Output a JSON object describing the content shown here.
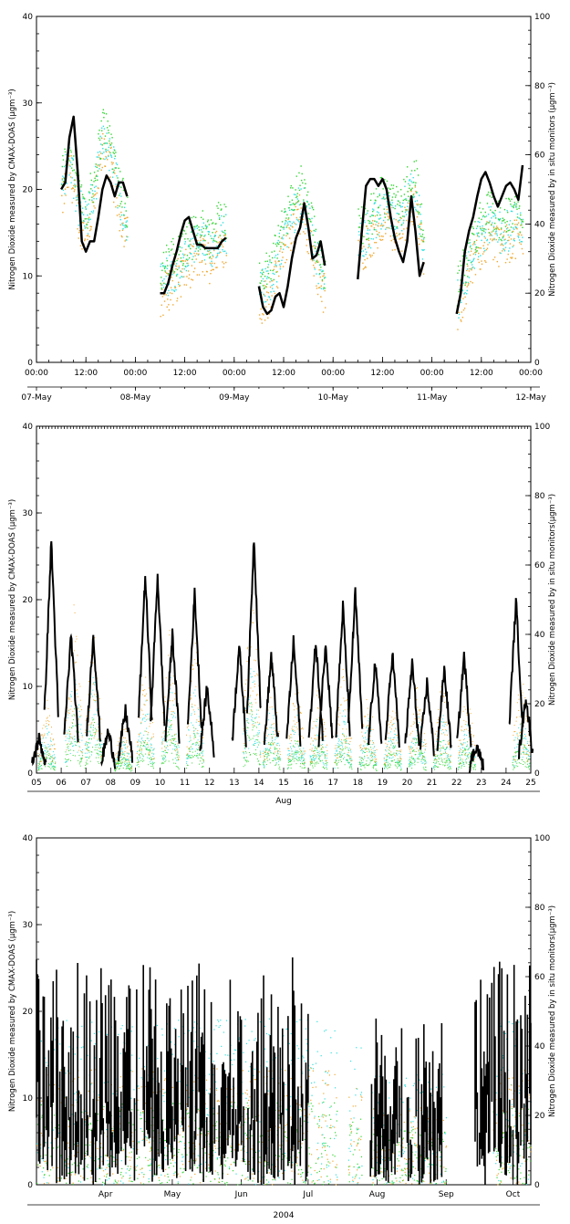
{
  "colors": {
    "in_situ": "#000000",
    "maxdoas_orange": "#f0a830",
    "maxdoas_green": "#33d633",
    "maxdoas_cyan": "#33e0e0"
  },
  "chart_data": [
    {
      "type": "scatter",
      "left_ylabel": "Nitrogen Dioxide measured by CMAX-DOAS (μgm⁻³)",
      "right_ylabel": "Nitrogen Dioxide measured by in situ monitors (μgm⁻³)",
      "left_ylim": [
        0,
        40
      ],
      "right_ylim": [
        0,
        100
      ],
      "left_yticks": [
        "0",
        "10",
        "20",
        "30",
        "40"
      ],
      "right_yticks": [
        "0",
        "20",
        "40",
        "60",
        "80",
        "100"
      ],
      "xlim": [
        0,
        120
      ],
      "x_ticks_top": [
        {
          "x": 0,
          "label": "00:00"
        },
        {
          "x": 12,
          "label": "12:00"
        },
        {
          "x": 24,
          "label": "00:00"
        },
        {
          "x": 36,
          "label": "12:00"
        },
        {
          "x": 48,
          "label": "00:00"
        },
        {
          "x": 60,
          "label": "12:00"
        },
        {
          "x": 72,
          "label": "00:00"
        },
        {
          "x": 84,
          "label": "12:00"
        },
        {
          "x": 96,
          "label": "00:00"
        },
        {
          "x": 108,
          "label": "12:00"
        },
        {
          "x": 120,
          "label": "00:00"
        }
      ],
      "x_ticks_bottom": [
        {
          "x": 0,
          "label": "07-May"
        },
        {
          "x": 24,
          "label": "08-May"
        },
        {
          "x": 48,
          "label": "09-May"
        },
        {
          "x": 72,
          "label": "10-May"
        },
        {
          "x": 96,
          "label": "11-May"
        },
        {
          "x": 120,
          "label": "12-May"
        }
      ],
      "xlabel": "",
      "segments": [
        {
          "start": 6,
          "end": 22,
          "insitu": [
            [
              6,
              50
            ],
            [
              7,
              52
            ],
            [
              8,
              65
            ],
            [
              9,
              71
            ],
            [
              10,
              55
            ],
            [
              11,
              35
            ],
            [
              12,
              32
            ],
            [
              13,
              35
            ],
            [
              14,
              35
            ],
            [
              15,
              42
            ],
            [
              16,
              50
            ],
            [
              17,
              54
            ],
            [
              18,
              52
            ],
            [
              19,
              48
            ],
            [
              20,
              52
            ],
            [
              21,
              52
            ],
            [
              22,
              48
            ]
          ],
          "doas": [
            [
              6,
              20
            ],
            [
              8,
              24
            ],
            [
              10,
              18
            ],
            [
              12,
              16
            ],
            [
              14,
              20
            ],
            [
              16,
              26
            ],
            [
              18,
              24
            ],
            [
              20,
              19
            ],
            [
              22,
              16
            ]
          ]
        },
        {
          "start": 30,
          "end": 46,
          "insitu": [
            [
              30,
              20
            ],
            [
              31,
              20
            ],
            [
              32,
              23
            ],
            [
              33,
              28
            ],
            [
              34,
              32
            ],
            [
              35,
              37
            ],
            [
              36,
              41
            ],
            [
              37,
              42
            ],
            [
              38,
              38
            ],
            [
              39,
              34
            ],
            [
              40,
              34
            ],
            [
              41,
              33
            ],
            [
              42,
              33
            ],
            [
              43,
              33
            ],
            [
              44,
              33
            ],
            [
              45,
              35
            ],
            [
              46,
              36
            ]
          ],
          "doas": [
            [
              30,
              9
            ],
            [
              32,
              10
            ],
            [
              34,
              11
            ],
            [
              36,
              12
            ],
            [
              38,
              13
            ],
            [
              40,
              14
            ],
            [
              42,
              13
            ],
            [
              44,
              15
            ],
            [
              46,
              15
            ]
          ]
        },
        {
          "start": 54,
          "end": 70,
          "insitu": [
            [
              54,
              22
            ],
            [
              55,
              16
            ],
            [
              56,
              14
            ],
            [
              57,
              15
            ],
            [
              58,
              19
            ],
            [
              59,
              20
            ],
            [
              60,
              16
            ],
            [
              61,
              22
            ],
            [
              62,
              30
            ],
            [
              63,
              36
            ],
            [
              64,
              39
            ],
            [
              65,
              46
            ],
            [
              66,
              39
            ],
            [
              67,
              30
            ],
            [
              68,
              31
            ],
            [
              69,
              35
            ],
            [
              70,
              28
            ]
          ],
          "doas": [
            [
              54,
              8
            ],
            [
              56,
              9
            ],
            [
              58,
              11
            ],
            [
              60,
              15
            ],
            [
              62,
              17
            ],
            [
              64,
              19
            ],
            [
              66,
              16
            ],
            [
              68,
              12
            ],
            [
              70,
              9
            ]
          ]
        },
        {
          "start": 78,
          "end": 94,
          "insitu": [
            [
              78,
              24
            ],
            [
              79,
              38
            ],
            [
              80,
              51
            ],
            [
              81,
              53
            ],
            [
              82,
              53
            ],
            [
              83,
              51
            ],
            [
              84,
              53
            ],
            [
              85,
              50
            ],
            [
              86,
              42
            ],
            [
              87,
              36
            ],
            [
              88,
              32
            ],
            [
              89,
              29
            ],
            [
              90,
              35
            ],
            [
              91,
              48
            ],
            [
              92,
              38
            ],
            [
              93,
              25
            ],
            [
              94,
              29
            ]
          ],
          "doas": [
            [
              78,
              14
            ],
            [
              80,
              15
            ],
            [
              82,
              16
            ],
            [
              84,
              18
            ],
            [
              86,
              17
            ],
            [
              88,
              16
            ],
            [
              90,
              19
            ],
            [
              92,
              20
            ],
            [
              94,
              12
            ]
          ]
        },
        {
          "start": 102,
          "end": 118,
          "insitu": [
            [
              102,
              14
            ],
            [
              103,
              20
            ],
            [
              104,
              32
            ],
            [
              105,
              38
            ],
            [
              106,
              42
            ],
            [
              107,
              48
            ],
            [
              108,
              53
            ],
            [
              109,
              55
            ],
            [
              110,
              52
            ],
            [
              111,
              48
            ],
            [
              112,
              45
            ],
            [
              113,
              48
            ],
            [
              114,
              51
            ],
            [
              115,
              52
            ],
            [
              116,
              50
            ],
            [
              117,
              47
            ],
            [
              118,
              57
            ]
          ],
          "doas": [
            [
              102,
              7
            ],
            [
              104,
              10
            ],
            [
              106,
              13
            ],
            [
              108,
              15
            ],
            [
              110,
              16
            ],
            [
              112,
              15
            ],
            [
              114,
              15
            ],
            [
              116,
              16
            ],
            [
              118,
              16
            ]
          ]
        }
      ]
    },
    {
      "type": "scatter",
      "left_ylabel": "Nitrogen Dioxide measured by CMAX-DOAS (μgm⁻³)",
      "right_ylabel": "Nitrogen Dioxide measured by in situ monitors(μgm⁻³)",
      "left_ylim": [
        0,
        40
      ],
      "right_ylim": [
        0,
        100
      ],
      "left_yticks": [
        "0",
        "10",
        "20",
        "30",
        "40"
      ],
      "right_yticks": [
        "0",
        "20",
        "40",
        "60",
        "80",
        "100"
      ],
      "xlim": [
        5,
        25
      ],
      "x_ticks": [
        {
          "x": 5,
          "label": "05"
        },
        {
          "x": 6,
          "label": "06"
        },
        {
          "x": 7,
          "label": "07"
        },
        {
          "x": 8,
          "label": "08"
        },
        {
          "x": 9,
          "label": "09"
        },
        {
          "x": 10,
          "label": "10"
        },
        {
          "x": 11,
          "label": "11"
        },
        {
          "x": 12,
          "label": "12"
        },
        {
          "x": 13,
          "label": "13"
        },
        {
          "x": 14,
          "label": "14"
        },
        {
          "x": 15,
          "label": "15"
        },
        {
          "x": 16,
          "label": "16"
        },
        {
          "x": 17,
          "label": "17"
        },
        {
          "x": 18,
          "label": "18"
        },
        {
          "x": 19,
          "label": "19"
        },
        {
          "x": 20,
          "label": "20"
        },
        {
          "x": 21,
          "label": "21"
        },
        {
          "x": 22,
          "label": "22"
        },
        {
          "x": 23,
          "label": "23"
        },
        {
          "x": 24,
          "label": "24"
        },
        {
          "x": 25,
          "label": "25"
        }
      ],
      "xlabel": "Aug",
      "insitu_daily_peaks": [
        [
          5.1,
          10
        ],
        [
          5.6,
          67
        ],
        [
          6.4,
          40
        ],
        [
          7.3,
          40
        ],
        [
          7.9,
          12
        ],
        [
          8.6,
          18
        ],
        [
          9.4,
          57
        ],
        [
          9.9,
          57
        ],
        [
          10.5,
          40
        ],
        [
          11.4,
          52
        ],
        [
          11.9,
          25
        ],
        [
          13.2,
          37
        ],
        [
          13.8,
          68
        ],
        [
          14.5,
          34
        ],
        [
          15.4,
          38
        ],
        [
          16.3,
          38
        ],
        [
          16.7,
          38
        ],
        [
          17.4,
          48
        ],
        [
          17.9,
          52
        ],
        [
          18.7,
          32
        ],
        [
          19.4,
          35
        ],
        [
          20.2,
          32
        ],
        [
          20.8,
          26
        ],
        [
          21.5,
          30
        ],
        [
          22.3,
          34
        ],
        [
          22.8,
          8
        ],
        [
          24.4,
          50
        ],
        [
          24.8,
          22
        ]
      ],
      "doas_daily_peaks": [
        [
          5.4,
          7
        ],
        [
          6.5,
          16
        ],
        [
          7.3,
          14
        ],
        [
          8.5,
          5
        ],
        [
          9.4,
          11
        ],
        [
          10.4,
          14
        ],
        [
          11.4,
          13
        ],
        [
          13.7,
          18
        ],
        [
          14.5,
          10
        ],
        [
          15.5,
          9
        ],
        [
          16.4,
          9
        ],
        [
          17.4,
          10
        ],
        [
          18.4,
          8
        ],
        [
          19.4,
          8
        ],
        [
          20.4,
          9
        ],
        [
          21.4,
          9
        ],
        [
          22.4,
          8
        ],
        [
          24.6,
          10
        ]
      ]
    },
    {
      "type": "scatter",
      "left_ylabel": "Nitrogen Dioxide measured by CMAX-DOAS (μgm⁻³)",
      "right_ylabel": "Nitrogen Dioxide measured by in situ monitors(μgm⁻³)",
      "left_ylim": [
        0,
        40
      ],
      "right_ylim": [
        0,
        100
      ],
      "left_yticks": [
        "0",
        "10",
        "20",
        "30",
        "40"
      ],
      "right_yticks": [
        "0",
        "20",
        "40",
        "60",
        "80",
        "100"
      ],
      "xlim": [
        0,
        222
      ],
      "x_ticks": [
        {
          "x": 31,
          "label": "Apr"
        },
        {
          "x": 61,
          "label": "May"
        },
        {
          "x": 92,
          "label": "Jun"
        },
        {
          "x": 122,
          "label": "Jul"
        },
        {
          "x": 153,
          "label": "Aug"
        },
        {
          "x": 184,
          "label": "Sep"
        },
        {
          "x": 214,
          "label": "Oct"
        }
      ],
      "xlabel": "2004",
      "insitu_periods": [
        [
          0,
          122,
          60
        ],
        [
          150,
          182,
          45
        ],
        [
          197,
          222,
          60
        ]
      ],
      "doas_periods": [
        [
          0,
          135,
          12
        ],
        [
          140,
          146,
          10
        ],
        [
          150,
          184,
          8
        ],
        [
          205,
          222,
          12
        ]
      ]
    }
  ]
}
